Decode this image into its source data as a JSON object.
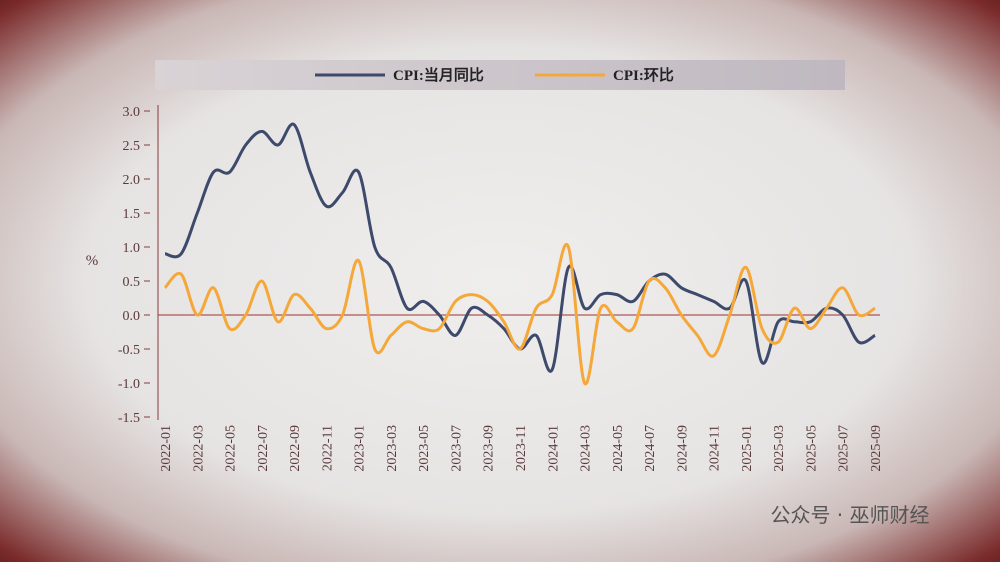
{
  "chart_data": {
    "type": "line",
    "legend": "top",
    "y_label": "%",
    "watermark": "公众号 · 巫师财经",
    "categories": [
      "2022-01",
      null,
      "2022-03",
      null,
      "2022-05",
      null,
      "2022-07",
      null,
      "2022-09",
      null,
      "2022-11",
      null,
      "2023-01",
      null,
      "2023-03",
      null,
      "2023-05",
      null,
      "2023-07",
      null,
      "2023-09",
      null,
      "2023-11",
      null,
      "2024-01",
      null,
      "2024-03",
      null,
      "2024-05",
      null,
      "2024-07",
      null,
      "2024-09",
      null,
      "2024-11",
      null,
      "2025-01",
      null,
      "2025-03",
      null,
      "2025-05",
      null,
      "2025-07",
      null,
      "2025-09"
    ],
    "series": [
      {
        "name": "CPI:当月同比",
        "color": "#3d4a6b",
        "values": [
          0.9,
          0.9,
          1.5,
          2.1,
          2.1,
          2.5,
          2.7,
          2.5,
          2.8,
          2.1,
          1.6,
          1.8,
          2.1,
          1.0,
          0.7,
          0.1,
          0.2,
          0.0,
          -0.3,
          0.1,
          0.0,
          -0.2,
          -0.5,
          -0.3,
          -0.8,
          0.7,
          0.1,
          0.3,
          0.3,
          0.2,
          0.5,
          0.6,
          0.4,
          0.3,
          0.2,
          0.1,
          0.5,
          -0.7,
          -0.1,
          -0.1,
          -0.1,
          0.1,
          0.0,
          -0.4,
          -0.3
        ]
      },
      {
        "name": "CPI:环比",
        "color": "#f5a83a",
        "values": [
          0.4,
          0.6,
          0.0,
          0.4,
          -0.2,
          0.0,
          0.5,
          -0.1,
          0.3,
          0.1,
          -0.2,
          0.0,
          0.8,
          -0.5,
          -0.3,
          -0.1,
          -0.2,
          -0.2,
          0.2,
          0.3,
          0.2,
          -0.1,
          -0.5,
          0.1,
          0.3,
          1.0,
          -1.0,
          0.1,
          -0.1,
          -0.2,
          0.5,
          0.4,
          0.0,
          -0.3,
          -0.6,
          0.0,
          0.7,
          -0.2,
          -0.4,
          0.1,
          -0.2,
          0.1,
          0.4,
          0.0,
          0.1
        ]
      }
    ],
    "ylim": [
      -1.5,
      3.0
    ],
    "yticks": [
      {
        "value": -1.5,
        "label": "-1.5"
      },
      {
        "value": -1,
        "label": "-1.0"
      },
      -0.5,
      {
        "value": 0,
        "label": "0.0"
      },
      0.5,
      {
        "value": 1,
        "label": "1.0"
      },
      1.5,
      {
        "value": 2,
        "label": "2.0"
      },
      2.5,
      {
        "value": 3,
        "label": "3.0"
      }
    ]
  }
}
